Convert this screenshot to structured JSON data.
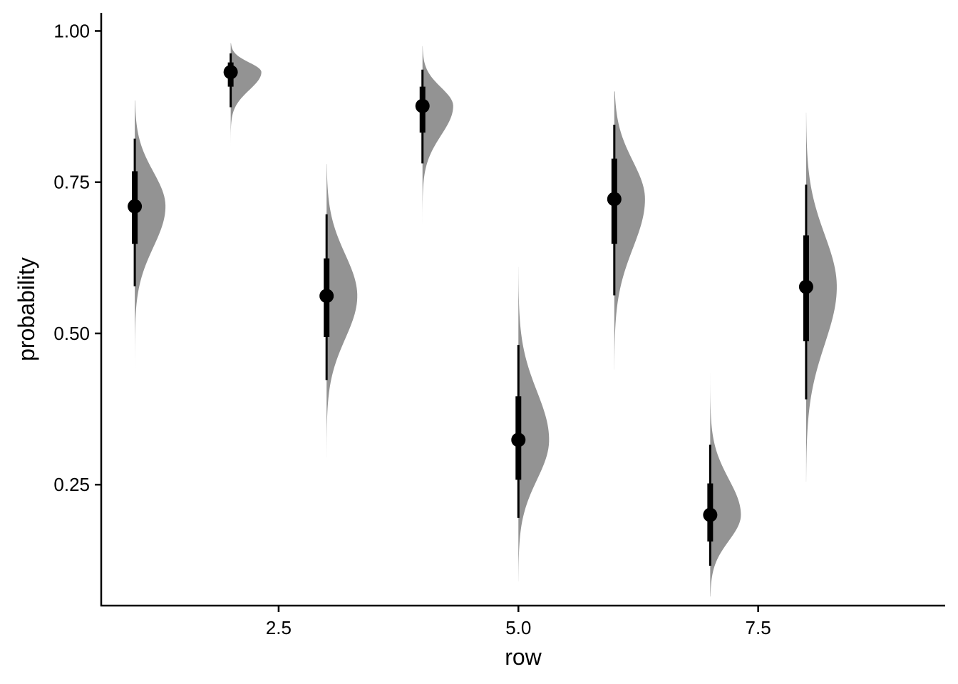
{
  "chart_data": {
    "type": "halfeye",
    "title": "",
    "xlabel": "row",
    "ylabel": "probability",
    "xlim": [
      0.65,
      9.45
    ],
    "ylim": [
      0.05,
      1.03
    ],
    "x_ticks": [
      2.5,
      5.0,
      7.5
    ],
    "x_tick_labels": [
      "2.5",
      "5.0",
      "7.5"
    ],
    "y_ticks": [
      0.25,
      0.5,
      0.75,
      1.0
    ],
    "y_tick_labels": [
      "0.25",
      "0.50",
      "0.75",
      "1.00"
    ],
    "grid": false,
    "legend": "none",
    "colors": {
      "density": "#939393",
      "interval": "#000000",
      "axis": "#000000"
    },
    "intervals": [
      {
        "row": 1,
        "median": 0.71,
        "q66": [
          0.648,
          0.768
        ],
        "q95": [
          0.578,
          0.822
        ],
        "support": [
          0.44,
          0.885
        ]
      },
      {
        "row": 2,
        "median": 0.932,
        "q66": [
          0.908,
          0.948
        ],
        "q95": [
          0.874,
          0.963
        ],
        "support": [
          0.81,
          0.98
        ]
      },
      {
        "row": 3,
        "median": 0.562,
        "q66": [
          0.494,
          0.624
        ],
        "q95": [
          0.423,
          0.697
        ],
        "support": [
          0.295,
          0.78
        ]
      },
      {
        "row": 4,
        "median": 0.876,
        "q66": [
          0.832,
          0.908
        ],
        "q95": [
          0.781,
          0.936
        ],
        "support": [
          0.68,
          0.975
        ]
      },
      {
        "row": 5,
        "median": 0.324,
        "q66": [
          0.258,
          0.396
        ],
        "q95": [
          0.195,
          0.481
        ],
        "support": [
          0.09,
          0.61
        ]
      },
      {
        "row": 6,
        "median": 0.722,
        "q66": [
          0.648,
          0.789
        ],
        "q95": [
          0.563,
          0.845
        ],
        "support": [
          0.44,
          0.9
        ]
      },
      {
        "row": 7,
        "median": 0.2,
        "q66": [
          0.156,
          0.252
        ],
        "q95": [
          0.116,
          0.316
        ],
        "support": [
          0.065,
          0.435
        ]
      },
      {
        "row": 8,
        "median": 0.577,
        "q66": [
          0.487,
          0.662
        ],
        "q95": [
          0.391,
          0.746
        ],
        "support": [
          0.255,
          0.865
        ]
      }
    ]
  }
}
